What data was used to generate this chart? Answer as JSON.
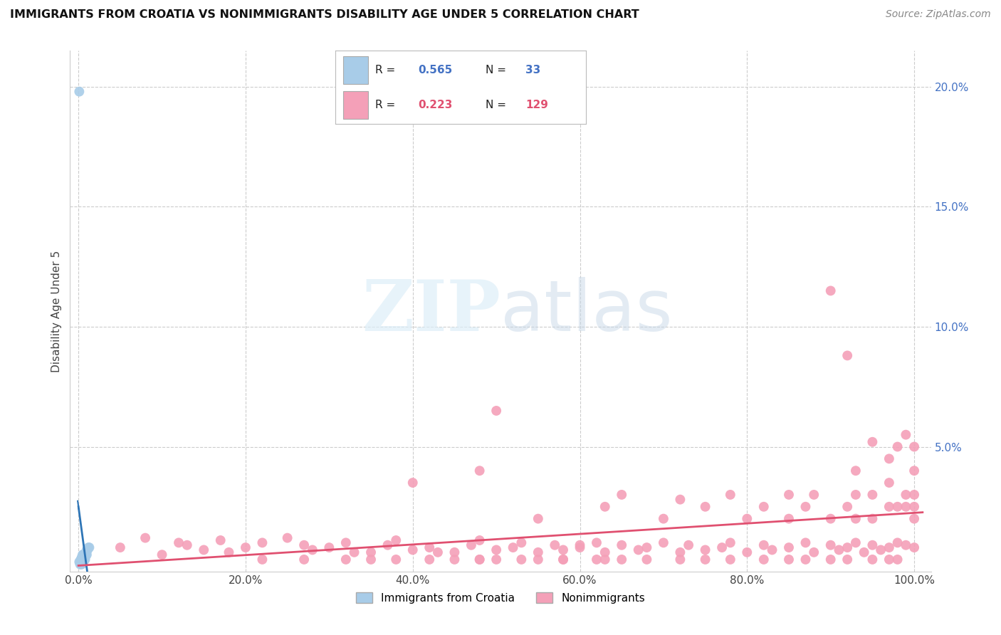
{
  "title": "IMMIGRANTS FROM CROATIA VS NONIMMIGRANTS DISABILITY AGE UNDER 5 CORRELATION CHART",
  "source": "Source: ZipAtlas.com",
  "ylabel": "Disability Age Under 5",
  "xlim": [
    -0.01,
    1.02
  ],
  "ylim": [
    -0.002,
    0.215
  ],
  "color_blue": "#a8cce8",
  "color_pink": "#f4a0b8",
  "color_blue_line": "#2e75b6",
  "color_pink_line": "#e05070",
  "color_grid": "#cccccc",
  "legend1_R": "0.565",
  "legend1_N": "33",
  "legend2_R": "0.223",
  "legend2_N": "129",
  "blue_line_slope": 7.5,
  "blue_line_intercept": -0.01,
  "pink_line_slope": 0.012,
  "pink_line_intercept": 0.003,
  "blue_x": [
    0.001,
    0.002,
    0.002,
    0.003,
    0.003,
    0.003,
    0.003,
    0.004,
    0.004,
    0.004,
    0.004,
    0.005,
    0.005,
    0.005,
    0.005,
    0.006,
    0.006,
    0.006,
    0.006,
    0.007,
    0.007,
    0.007,
    0.008,
    0.008,
    0.008,
    0.009,
    0.009,
    0.01,
    0.01,
    0.011,
    0.012,
    0.013,
    0.001
  ],
  "blue_y": [
    0.002,
    0.001,
    0.002,
    0.001,
    0.002,
    0.003,
    0.003,
    0.001,
    0.002,
    0.003,
    0.004,
    0.002,
    0.003,
    0.004,
    0.005,
    0.002,
    0.003,
    0.004,
    0.005,
    0.003,
    0.004,
    0.005,
    0.003,
    0.004,
    0.005,
    0.005,
    0.006,
    0.005,
    0.007,
    0.007,
    0.008,
    0.008,
    0.198
  ],
  "pink_x": [
    0.05,
    0.08,
    0.1,
    0.12,
    0.13,
    0.15,
    0.17,
    0.18,
    0.2,
    0.22,
    0.25,
    0.27,
    0.28,
    0.3,
    0.32,
    0.33,
    0.35,
    0.37,
    0.38,
    0.4,
    0.4,
    0.42,
    0.43,
    0.45,
    0.47,
    0.48,
    0.48,
    0.5,
    0.5,
    0.52,
    0.53,
    0.55,
    0.55,
    0.57,
    0.58,
    0.6,
    0.6,
    0.62,
    0.63,
    0.63,
    0.65,
    0.65,
    0.67,
    0.68,
    0.7,
    0.7,
    0.72,
    0.72,
    0.73,
    0.75,
    0.75,
    0.77,
    0.78,
    0.78,
    0.8,
    0.8,
    0.82,
    0.82,
    0.83,
    0.85,
    0.85,
    0.85,
    0.87,
    0.87,
    0.88,
    0.88,
    0.9,
    0.9,
    0.9,
    0.91,
    0.92,
    0.92,
    0.92,
    0.93,
    0.93,
    0.93,
    0.93,
    0.94,
    0.95,
    0.95,
    0.95,
    0.95,
    0.96,
    0.97,
    0.97,
    0.97,
    0.97,
    0.98,
    0.98,
    0.98,
    0.99,
    0.99,
    0.99,
    0.99,
    1.0,
    1.0,
    1.0,
    1.0,
    1.0,
    1.0,
    0.35,
    0.45,
    0.48,
    0.5,
    0.55,
    0.58,
    0.62,
    0.65,
    0.68,
    0.72,
    0.75,
    0.78,
    0.82,
    0.85,
    0.87,
    0.9,
    0.92,
    0.95,
    0.97,
    0.98,
    0.22,
    0.27,
    0.32,
    0.38,
    0.42,
    0.48,
    0.53,
    0.58,
    0.63
  ],
  "pink_y": [
    0.008,
    0.012,
    0.005,
    0.01,
    0.009,
    0.007,
    0.011,
    0.006,
    0.008,
    0.01,
    0.012,
    0.009,
    0.007,
    0.008,
    0.01,
    0.006,
    0.006,
    0.009,
    0.011,
    0.007,
    0.035,
    0.008,
    0.006,
    0.006,
    0.009,
    0.011,
    0.04,
    0.007,
    0.065,
    0.008,
    0.01,
    0.006,
    0.02,
    0.009,
    0.007,
    0.008,
    0.009,
    0.01,
    0.006,
    0.025,
    0.009,
    0.03,
    0.007,
    0.008,
    0.01,
    0.02,
    0.006,
    0.028,
    0.009,
    0.007,
    0.025,
    0.008,
    0.01,
    0.03,
    0.006,
    0.02,
    0.009,
    0.025,
    0.007,
    0.008,
    0.03,
    0.02,
    0.01,
    0.025,
    0.006,
    0.03,
    0.009,
    0.02,
    0.115,
    0.007,
    0.008,
    0.025,
    0.088,
    0.01,
    0.02,
    0.03,
    0.04,
    0.006,
    0.009,
    0.02,
    0.03,
    0.052,
    0.007,
    0.008,
    0.025,
    0.035,
    0.045,
    0.01,
    0.025,
    0.05,
    0.009,
    0.025,
    0.03,
    0.055,
    0.02,
    0.03,
    0.04,
    0.05,
    0.025,
    0.008,
    0.003,
    0.003,
    0.003,
    0.003,
    0.003,
    0.003,
    0.003,
    0.003,
    0.003,
    0.003,
    0.003,
    0.003,
    0.003,
    0.003,
    0.003,
    0.003,
    0.003,
    0.003,
    0.003,
    0.003,
    0.003,
    0.003,
    0.003,
    0.003,
    0.003,
    0.003,
    0.003,
    0.003,
    0.003
  ]
}
